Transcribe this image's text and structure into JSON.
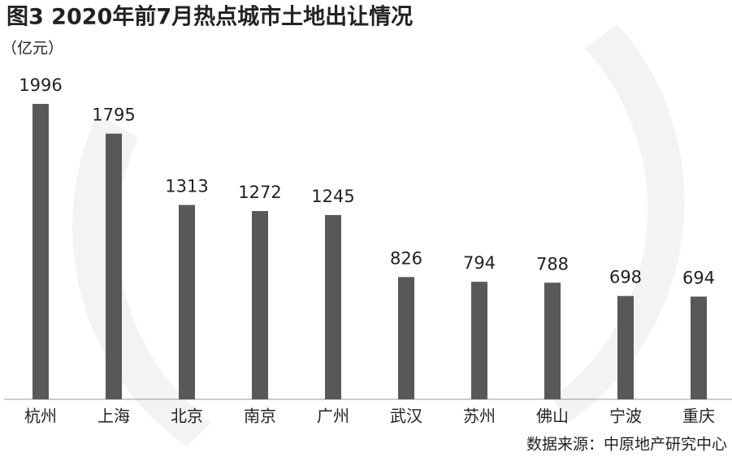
{
  "chart_data": {
    "type": "bar",
    "title": "图3 2020年前7月热点城市土地出让情况",
    "subtitle": "（亿元）",
    "categories": [
      "杭州",
      "上海",
      "北京",
      "南京",
      "广州",
      "武汉",
      "苏州",
      "佛山",
      "宁波",
      "重庆"
    ],
    "values": [
      1996,
      1795,
      1313,
      1272,
      1245,
      826,
      794,
      788,
      698,
      694
    ],
    "color": "#58585a",
    "source": "数据来源：中原地产研究中心"
  }
}
